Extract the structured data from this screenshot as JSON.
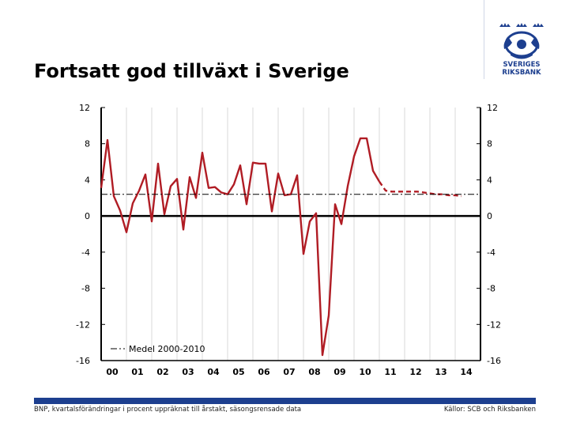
{
  "slide": {
    "title": "Fortsatt god tillväxt i Sverige",
    "footer_left": "BNP, kvartalsförändringar i procent uppräknat till årstakt, säsongsrensade data",
    "footer_right": "Källor: SCB och Riksbanken",
    "logo_text_line1": "SVERIGES",
    "logo_text_line2": "RIKSBANK",
    "brand_color": "#1d3f8f"
  },
  "chart_data": {
    "type": "line",
    "title": "",
    "xlabel": "",
    "ylabel": "",
    "ylim": [
      -16,
      12
    ],
    "yticks": [
      "12",
      "8",
      "4",
      "0",
      "-4",
      "-8",
      "-12",
      "-16"
    ],
    "ytick_values": [
      12,
      8,
      4,
      0,
      -4,
      -8,
      -12,
      -16
    ],
    "xtick_labels": [
      "00",
      "01",
      "02",
      "03",
      "04",
      "05",
      "06",
      "07",
      "08",
      "09",
      "10",
      "11",
      "12",
      "13",
      "14"
    ],
    "xtick_years": [
      2000,
      2001,
      2002,
      2003,
      2004,
      2005,
      2006,
      2007,
      2008,
      2009,
      2010,
      2011,
      2012,
      2013,
      2014
    ],
    "xlim": [
      2000.0,
      2015.0
    ],
    "grid": "vertical",
    "legend": {
      "placement": "bottom-left"
    },
    "series": [
      {
        "style": "solid",
        "color": "#b01c24",
        "x": [
          2000.0,
          2000.25,
          2000.5,
          2000.75,
          2001.0,
          2001.25,
          2001.5,
          2001.75,
          2002.0,
          2002.25,
          2002.5,
          2002.75,
          2003.0,
          2003.25,
          2003.5,
          2003.75,
          2004.0,
          2004.25,
          2004.5,
          2004.75,
          2005.0,
          2005.25,
          2005.5,
          2005.75,
          2006.0,
          2006.25,
          2006.5,
          2006.75,
          2007.0,
          2007.25,
          2007.5,
          2007.75,
          2008.0,
          2008.25,
          2008.5,
          2008.75,
          2009.0,
          2009.25,
          2009.5,
          2009.75,
          2010.0,
          2010.25,
          2010.5,
          2010.75,
          2011.0
        ],
        "y": [
          3.1,
          8.4,
          2.2,
          0.6,
          -1.8,
          1.4,
          2.8,
          4.6,
          -0.6,
          5.8,
          0.2,
          3.3,
          4.1,
          -1.5,
          4.3,
          2.0,
          7.0,
          3.1,
          3.2,
          2.6,
          2.4,
          3.5,
          5.6,
          1.3,
          5.9,
          5.8,
          5.8,
          0.5,
          4.7,
          2.3,
          2.4,
          4.5,
          -4.2,
          -0.6,
          0.3,
          -15.4,
          -11.0,
          1.3,
          -0.9,
          3.3,
          6.6,
          8.6,
          8.6,
          5.0,
          3.8
        ]
      },
      {
        "style": "dashed",
        "color": "#b01c24",
        "x": [
          2011.0,
          2011.25,
          2011.5,
          2011.75,
          2012.0,
          2012.25,
          2012.5,
          2012.75,
          2013.0,
          2013.25,
          2013.5,
          2013.75,
          2014.0,
          2014.25
        ],
        "y": [
          3.8,
          2.8,
          2.7,
          2.7,
          2.7,
          2.7,
          2.7,
          2.6,
          2.5,
          2.4,
          2.4,
          2.3,
          2.3,
          2.2
        ]
      },
      {
        "name": "Medel 2000-2010",
        "style": "dash-dot",
        "color": "#000000",
        "x": [
          2000.0,
          2015.0
        ],
        "y": [
          2.4,
          2.4
        ]
      }
    ]
  }
}
